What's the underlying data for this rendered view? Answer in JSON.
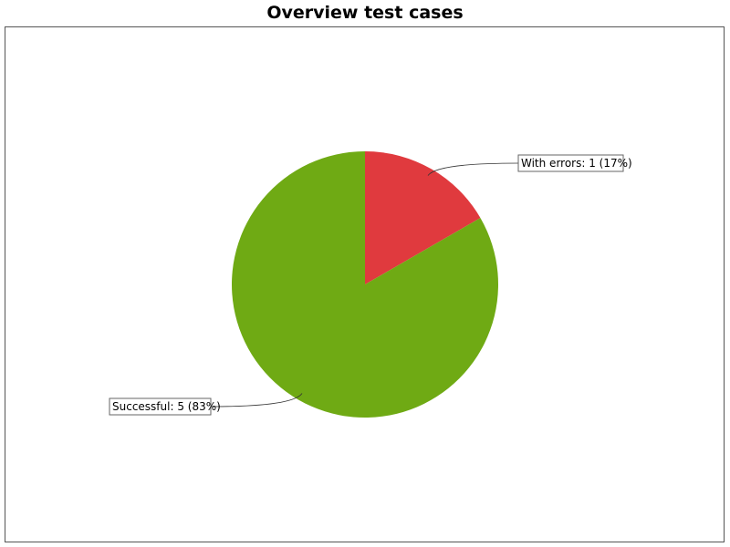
{
  "chart_data": {
    "type": "pie",
    "title": "Overview test cases",
    "slices": [
      {
        "label": "With errors: 1 (17%)",
        "name": "With errors",
        "value": 1,
        "percent": 17,
        "color": "#e03a3e"
      },
      {
        "label": "Successful: 5 (83%)",
        "name": "Successful",
        "value": 5,
        "percent": 83,
        "color": "#6faa14"
      }
    ],
    "start_angle": "12 o'clock",
    "direction": "clockwise",
    "legend": "none"
  }
}
